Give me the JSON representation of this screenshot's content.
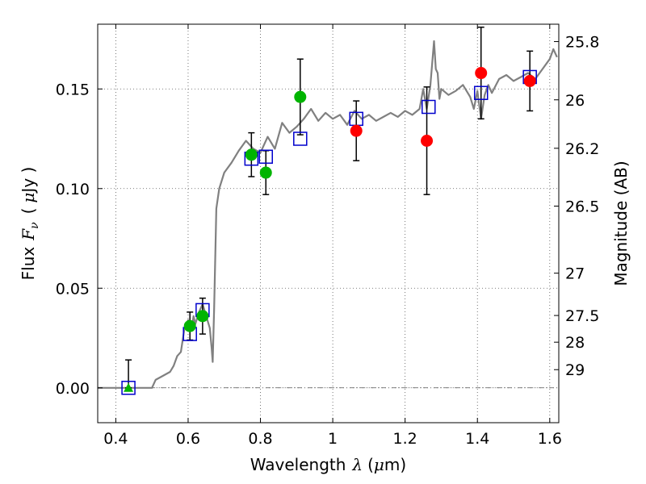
{
  "chart_data": {
    "type": "scatter",
    "title": "",
    "xlabel": {
      "prefix": "Wavelength",
      "symbol": "λ",
      "unit_open": "(",
      "unit_mu": "μ",
      "unit_rest": "m)"
    },
    "ylabel": {
      "prefix": "Flux",
      "symbol": "F",
      "subscript": "ν",
      "unit_open": "(",
      "unit_mu": "μ",
      "unit_rest": "Jy )"
    },
    "y2label": "Magnitude (AB)",
    "xlim": [
      0.35,
      1.625
    ],
    "ylim": [
      -0.0175,
      0.1825
    ],
    "grid": true,
    "grid_style": "dotted",
    "x_ticks": [
      {
        "value": 0.4,
        "label": "0.4"
      },
      {
        "value": 0.6,
        "label": "0.6"
      },
      {
        "value": 0.8,
        "label": "0.8"
      },
      {
        "value": 1.0,
        "label": "1"
      },
      {
        "value": 1.2,
        "label": "1.2"
      },
      {
        "value": 1.4,
        "label": "1.4"
      },
      {
        "value": 1.6,
        "label": "1.6"
      }
    ],
    "y_ticks": [
      {
        "value": 0.0,
        "label": "0.00"
      },
      {
        "value": 0.05,
        "label": "0.05"
      },
      {
        "value": 0.1,
        "label": "0.10"
      },
      {
        "value": 0.15,
        "label": "0.15"
      }
    ],
    "magnitude_ticks": [
      {
        "value": 25.8,
        "label": "25.8"
      },
      {
        "value": 26.0,
        "label": "26"
      },
      {
        "value": 26.2,
        "label": "26.2"
      },
      {
        "value": 26.5,
        "label": "26.5"
      },
      {
        "value": 27.0,
        "label": "27"
      },
      {
        "value": 27.5,
        "label": "27.5"
      },
      {
        "value": 28.0,
        "label": "28"
      },
      {
        "value": 29.0,
        "label": "29"
      }
    ],
    "colors": {
      "sed": "#808080",
      "model": "#0000cc",
      "green": "#00b400",
      "red": "#ff0000",
      "error": "#000000",
      "grid": "#555555"
    },
    "sed_curve": {
      "x": [
        0.35,
        0.5,
        0.51,
        0.53,
        0.55,
        0.56,
        0.57,
        0.58,
        0.59,
        0.6,
        0.61,
        0.615,
        0.62,
        0.63,
        0.64,
        0.65,
        0.66,
        0.665,
        0.668,
        0.672,
        0.678,
        0.686,
        0.7,
        0.72,
        0.74,
        0.76,
        0.77,
        0.78,
        0.8,
        0.82,
        0.84,
        0.86,
        0.88,
        0.9,
        0.92,
        0.94,
        0.96,
        0.98,
        1.0,
        1.02,
        1.04,
        1.06,
        1.08,
        1.1,
        1.12,
        1.14,
        1.16,
        1.18,
        1.2,
        1.22,
        1.24,
        1.25,
        1.26,
        1.27,
        1.28,
        1.285,
        1.29,
        1.295,
        1.3,
        1.32,
        1.34,
        1.36,
        1.38,
        1.39,
        1.4,
        1.41,
        1.42,
        1.43,
        1.44,
        1.46,
        1.48,
        1.5,
        1.52,
        1.54,
        1.56,
        1.58,
        1.6,
        1.61,
        1.62
      ],
      "y": [
        0.0,
        0.0,
        0.004,
        0.006,
        0.008,
        0.011,
        0.016,
        0.018,
        0.03,
        0.034,
        0.03,
        0.036,
        0.032,
        0.038,
        0.042,
        0.036,
        0.03,
        0.02,
        0.013,
        0.04,
        0.09,
        0.1,
        0.108,
        0.113,
        0.119,
        0.124,
        0.122,
        0.12,
        0.118,
        0.126,
        0.12,
        0.133,
        0.128,
        0.131,
        0.135,
        0.14,
        0.134,
        0.138,
        0.135,
        0.137,
        0.132,
        0.139,
        0.135,
        0.137,
        0.134,
        0.136,
        0.138,
        0.136,
        0.139,
        0.137,
        0.14,
        0.15,
        0.14,
        0.152,
        0.174,
        0.16,
        0.158,
        0.145,
        0.15,
        0.147,
        0.149,
        0.152,
        0.146,
        0.14,
        0.149,
        0.135,
        0.147,
        0.152,
        0.148,
        0.155,
        0.157,
        0.154,
        0.156,
        0.158,
        0.155,
        0.16,
        0.165,
        0.17,
        0.166
      ]
    },
    "model_points": {
      "x": [
        0.435,
        0.605,
        0.64,
        0.775,
        0.815,
        0.91,
        1.065,
        1.265,
        1.41,
        1.545
      ],
      "y": [
        0.0,
        0.027,
        0.039,
        0.115,
        0.116,
        0.125,
        0.135,
        0.141,
        0.148,
        0.156
      ]
    },
    "green_points": {
      "x": [
        0.605,
        0.64,
        0.775,
        0.815,
        0.91
      ],
      "y": [
        0.031,
        0.036,
        0.117,
        0.108,
        0.146
      ],
      "yerr": [
        0.007,
        0.009,
        0.011,
        0.011,
        0.019
      ]
    },
    "green_upper_limit": {
      "x": [
        0.435
      ],
      "y": [
        0.0
      ],
      "yerr_upper": [
        0.014
      ]
    },
    "red_points": {
      "x": [
        1.065,
        1.26,
        1.41,
        1.545
      ],
      "y": [
        0.129,
        0.124,
        0.158,
        0.154
      ],
      "yerr": [
        0.015,
        0.027,
        0.023,
        0.015
      ]
    }
  }
}
